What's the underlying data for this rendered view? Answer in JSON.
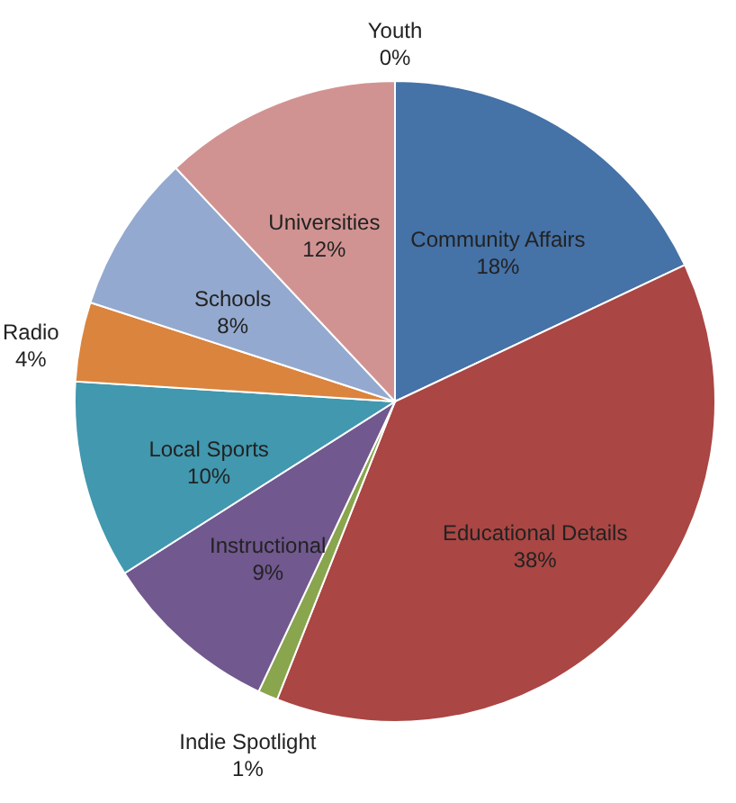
{
  "chart_data": {
    "type": "pie",
    "categories": [
      "Community Affairs",
      "Educational Details",
      "Indie Spotlight",
      "Instructional",
      "Local Sports",
      "Radio",
      "Schools",
      "Universities",
      "Youth"
    ],
    "values": [
      18,
      38,
      1,
      9,
      10,
      4,
      8,
      12,
      0
    ],
    "value_labels": [
      "18%",
      "38%",
      "1%",
      "9%",
      "10%",
      "4%",
      "8%",
      "12%",
      "0%"
    ],
    "colors": [
      "#4572a7",
      "#aa4643",
      "#89a54e",
      "#71588f",
      "#4198af",
      "#db843d",
      "#93a9cf",
      "#d19392",
      "#b9cd96"
    ]
  }
}
